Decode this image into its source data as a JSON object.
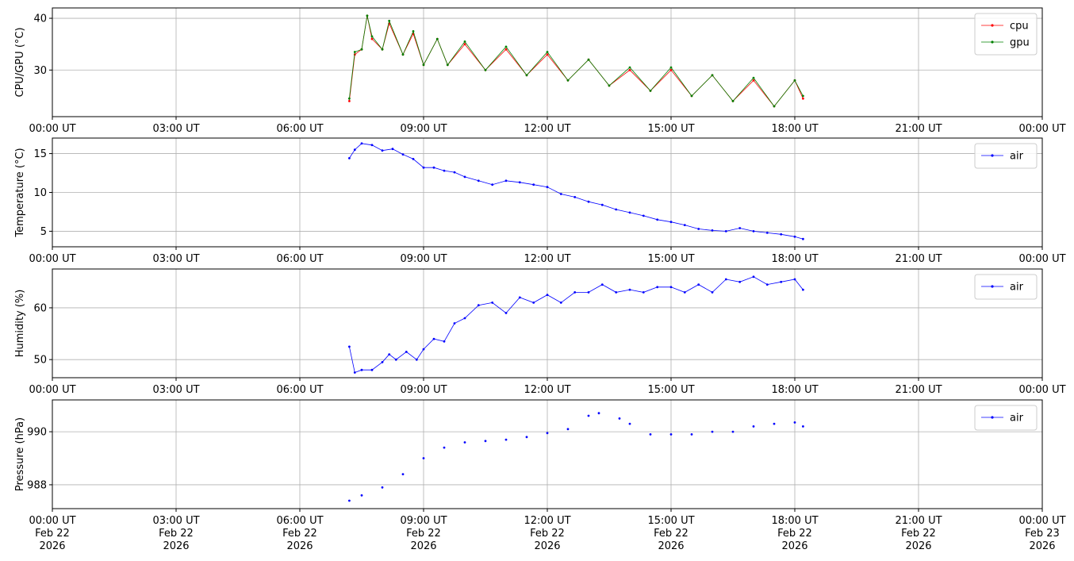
{
  "chart_data": [
    {
      "type": "line",
      "ylabel": "CPU/GPU (°C)",
      "ylim": [
        21,
        42
      ],
      "yticks": [
        30,
        40
      ],
      "xlim": [
        "2026-02-22T00:00",
        "2026-02-23T00:00"
      ],
      "xtick_labels": [
        "00:00 UT",
        "03:00 UT",
        "06:00 UT",
        "09:00 UT",
        "12:00 UT",
        "15:00 UT",
        "18:00 UT",
        "21:00 UT",
        "00:00 UT"
      ],
      "grid": true,
      "legend": "upper-right",
      "series": [
        {
          "name": "cpu",
          "color": "#ff0000",
          "x": [
            "2026-02-22T07:12",
            "2026-02-22T07:20",
            "2026-02-22T07:30",
            "2026-02-22T07:38",
            "2026-02-22T07:45",
            "2026-02-22T08:00",
            "2026-02-22T08:10",
            "2026-02-22T08:30",
            "2026-02-22T08:45",
            "2026-02-22T09:00",
            "2026-02-22T09:20",
            "2026-02-22T09:35",
            "2026-02-22T10:00",
            "2026-02-22T10:30",
            "2026-02-22T11:00",
            "2026-02-22T11:30",
            "2026-02-22T12:00",
            "2026-02-22T12:30",
            "2026-02-22T13:00",
            "2026-02-22T13:30",
            "2026-02-22T14:00",
            "2026-02-22T14:30",
            "2026-02-22T15:00",
            "2026-02-22T15:30",
            "2026-02-22T16:00",
            "2026-02-22T16:30",
            "2026-02-22T17:00",
            "2026-02-22T17:30",
            "2026-02-22T18:00",
            "2026-02-22T18:12"
          ],
          "y": [
            24,
            33,
            34,
            40.5,
            36,
            34,
            39,
            33,
            37,
            31,
            36,
            31,
            35,
            30,
            34,
            29,
            33,
            28,
            32,
            27,
            30,
            26,
            30,
            25,
            29,
            24,
            28,
            23,
            28,
            24.5
          ]
        },
        {
          "name": "gpu",
          "color": "#008000",
          "x": [
            "2026-02-22T07:12",
            "2026-02-22T07:20",
            "2026-02-22T07:30",
            "2026-02-22T07:38",
            "2026-02-22T07:45",
            "2026-02-22T08:00",
            "2026-02-22T08:10",
            "2026-02-22T08:30",
            "2026-02-22T08:45",
            "2026-02-22T09:00",
            "2026-02-22T09:20",
            "2026-02-22T09:35",
            "2026-02-22T10:00",
            "2026-02-22T10:30",
            "2026-02-22T11:00",
            "2026-02-22T11:30",
            "2026-02-22T12:00",
            "2026-02-22T12:30",
            "2026-02-22T13:00",
            "2026-02-22T13:30",
            "2026-02-22T14:00",
            "2026-02-22T14:30",
            "2026-02-22T15:00",
            "2026-02-22T15:30",
            "2026-02-22T16:00",
            "2026-02-22T16:30",
            "2026-02-22T17:00",
            "2026-02-22T17:30",
            "2026-02-22T18:00",
            "2026-02-22T18:12"
          ],
          "y": [
            24.5,
            33.5,
            34,
            40.5,
            36.5,
            34,
            39.5,
            33,
            37.5,
            31,
            36,
            31,
            35.5,
            30,
            34.5,
            29,
            33.5,
            28,
            32,
            27,
            30.5,
            26,
            30.5,
            25,
            29,
            24,
            28.5,
            23,
            28,
            25
          ]
        }
      ]
    },
    {
      "type": "line",
      "ylabel": "Temperature (°C)",
      "ylim": [
        3,
        17
      ],
      "yticks": [
        5,
        10,
        15
      ],
      "xlim": [
        "2026-02-22T00:00",
        "2026-02-23T00:00"
      ],
      "xtick_labels": [
        "00:00 UT",
        "03:00 UT",
        "06:00 UT",
        "09:00 UT",
        "12:00 UT",
        "15:00 UT",
        "18:00 UT",
        "21:00 UT",
        "00:00 UT"
      ],
      "grid": true,
      "legend": "upper-right",
      "series": [
        {
          "name": "air",
          "color": "#0000ff",
          "x": [
            "2026-02-22T07:12",
            "2026-02-22T07:20",
            "2026-02-22T07:30",
            "2026-02-22T07:45",
            "2026-02-22T08:00",
            "2026-02-22T08:15",
            "2026-02-22T08:30",
            "2026-02-22T08:45",
            "2026-02-22T09:00",
            "2026-02-22T09:15",
            "2026-02-22T09:30",
            "2026-02-22T09:45",
            "2026-02-22T10:00",
            "2026-02-22T10:20",
            "2026-02-22T10:40",
            "2026-02-22T11:00",
            "2026-02-22T11:20",
            "2026-02-22T11:40",
            "2026-02-22T12:00",
            "2026-02-22T12:20",
            "2026-02-22T12:40",
            "2026-02-22T13:00",
            "2026-02-22T13:20",
            "2026-02-22T13:40",
            "2026-02-22T14:00",
            "2026-02-22T14:20",
            "2026-02-22T14:40",
            "2026-02-22T15:00",
            "2026-02-22T15:20",
            "2026-02-22T15:40",
            "2026-02-22T16:00",
            "2026-02-22T16:20",
            "2026-02-22T16:40",
            "2026-02-22T17:00",
            "2026-02-22T17:20",
            "2026-02-22T17:40",
            "2026-02-22T18:00",
            "2026-02-22T18:12"
          ],
          "y": [
            14.4,
            15.5,
            16.3,
            16.1,
            15.4,
            15.6,
            14.9,
            14.3,
            13.2,
            13.2,
            12.8,
            12.6,
            12,
            11.5,
            11,
            11.5,
            11.3,
            11,
            10.7,
            9.8,
            9.4,
            8.8,
            8.4,
            7.8,
            7.4,
            7,
            6.5,
            6.2,
            5.8,
            5.3,
            5.1,
            5,
            5.4,
            5,
            4.8,
            4.6,
            4.3,
            4
          ]
        }
      ]
    },
    {
      "type": "line",
      "ylabel": "Humidity (%)",
      "ylim": [
        46.5,
        67.5
      ],
      "yticks": [
        50,
        60
      ],
      "xlim": [
        "2026-02-22T00:00",
        "2026-02-23T00:00"
      ],
      "xtick_labels": [
        "00:00 UT",
        "03:00 UT",
        "06:00 UT",
        "09:00 UT",
        "12:00 UT",
        "15:00 UT",
        "18:00 UT",
        "21:00 UT",
        "00:00 UT"
      ],
      "grid": true,
      "legend": "upper-right",
      "series": [
        {
          "name": "air",
          "color": "#0000ff",
          "x": [
            "2026-02-22T07:12",
            "2026-02-22T07:20",
            "2026-02-22T07:30",
            "2026-02-22T07:45",
            "2026-02-22T08:00",
            "2026-02-22T08:10",
            "2026-02-22T08:20",
            "2026-02-22T08:35",
            "2026-02-22T08:50",
            "2026-02-22T09:00",
            "2026-02-22T09:15",
            "2026-02-22T09:30",
            "2026-02-22T09:45",
            "2026-02-22T10:00",
            "2026-02-22T10:20",
            "2026-02-22T10:40",
            "2026-02-22T11:00",
            "2026-02-22T11:20",
            "2026-02-22T11:40",
            "2026-02-22T12:00",
            "2026-02-22T12:20",
            "2026-02-22T12:40",
            "2026-02-22T13:00",
            "2026-02-22T13:20",
            "2026-02-22T13:40",
            "2026-02-22T14:00",
            "2026-02-22T14:20",
            "2026-02-22T14:40",
            "2026-02-22T15:00",
            "2026-02-22T15:20",
            "2026-02-22T15:40",
            "2026-02-22T16:00",
            "2026-02-22T16:20",
            "2026-02-22T16:40",
            "2026-02-22T17:00",
            "2026-02-22T17:20",
            "2026-02-22T17:40",
            "2026-02-22T18:00",
            "2026-02-22T18:12"
          ],
          "y": [
            52.5,
            47.5,
            48,
            48,
            49.5,
            51,
            50,
            51.5,
            50,
            52,
            54,
            53.5,
            57,
            58,
            60.5,
            61,
            59,
            62,
            61,
            62.5,
            61,
            63,
            63,
            64.5,
            63,
            63.5,
            63,
            64,
            64,
            63,
            64.5,
            63,
            65.5,
            65,
            66,
            64.5,
            65,
            65.5,
            63.5
          ]
        }
      ]
    },
    {
      "type": "scatter",
      "ylabel": "Pressure (hPa)",
      "ylim": [
        987.1,
        991.2
      ],
      "yticks": [
        988,
        990
      ],
      "xlim": [
        "2026-02-22T00:00",
        "2026-02-23T00:00"
      ],
      "xtick_labels": [
        "00:00 UT\nFeb 22\n2026",
        "03:00 UT\nFeb 22\n2026",
        "06:00 UT\nFeb 22\n2026",
        "09:00 UT\nFeb 22\n2026",
        "12:00 UT\nFeb 22\n2026",
        "15:00 UT\nFeb 22\n2026",
        "18:00 UT\nFeb 22\n2026",
        "21:00 UT\nFeb 22\n2026",
        "00:00 UT\nFeb 23\n2026"
      ],
      "grid": true,
      "legend": "upper-right",
      "series": [
        {
          "name": "air",
          "color": "#0000ff",
          "x": [
            "2026-02-22T07:12",
            "2026-02-22T07:30",
            "2026-02-22T08:00",
            "2026-02-22T08:30",
            "2026-02-22T09:00",
            "2026-02-22T09:30",
            "2026-02-22T10:00",
            "2026-02-22T10:30",
            "2026-02-22T11:00",
            "2026-02-22T11:30",
            "2026-02-22T12:00",
            "2026-02-22T12:30",
            "2026-02-22T13:00",
            "2026-02-22T13:15",
            "2026-02-22T13:45",
            "2026-02-22T14:00",
            "2026-02-22T14:30",
            "2026-02-22T15:00",
            "2026-02-22T15:30",
            "2026-02-22T16:00",
            "2026-02-22T16:30",
            "2026-02-22T17:00",
            "2026-02-22T17:30",
            "2026-02-22T18:00",
            "2026-02-22T18:12"
          ],
          "y": [
            987.4,
            987.6,
            987.9,
            988.4,
            989,
            989.4,
            989.6,
            989.65,
            989.7,
            989.8,
            989.95,
            990.1,
            990.6,
            990.7,
            990.5,
            990.3,
            989.9,
            989.9,
            989.9,
            990,
            990,
            990.2,
            990.3,
            990.35,
            990.2
          ]
        }
      ]
    }
  ]
}
